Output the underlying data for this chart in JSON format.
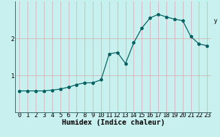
{
  "title": "",
  "xlabel": "Humidex (Indice chaleur)",
  "bg_color": "#c8f0ee",
  "line_color": "#006060",
  "grid_color": "#d4a8a8",
  "marker_color": "#006060",
  "x_values": [
    0,
    1,
    2,
    3,
    4,
    5,
    6,
    7,
    8,
    9,
    10,
    11,
    12,
    13,
    14,
    15,
    16,
    17,
    18,
    19,
    20,
    21,
    22,
    23
  ],
  "y_values": [
    0.58,
    0.58,
    0.58,
    0.58,
    0.6,
    0.63,
    0.68,
    0.75,
    0.8,
    0.8,
    0.88,
    1.58,
    1.62,
    1.32,
    1.88,
    2.28,
    2.55,
    2.65,
    2.58,
    2.52,
    2.48,
    2.05,
    1.85,
    1.8
  ],
  "ylim": [
    0.0,
    3.0
  ],
  "yticks": [
    1,
    2
  ],
  "xlim": [
    -0.5,
    23.5
  ],
  "marker_size": 2.5,
  "linewidth": 0.9,
  "label_fontsize": 7.5,
  "tick_fontsize": 6.5,
  "right_ylabel": "y"
}
